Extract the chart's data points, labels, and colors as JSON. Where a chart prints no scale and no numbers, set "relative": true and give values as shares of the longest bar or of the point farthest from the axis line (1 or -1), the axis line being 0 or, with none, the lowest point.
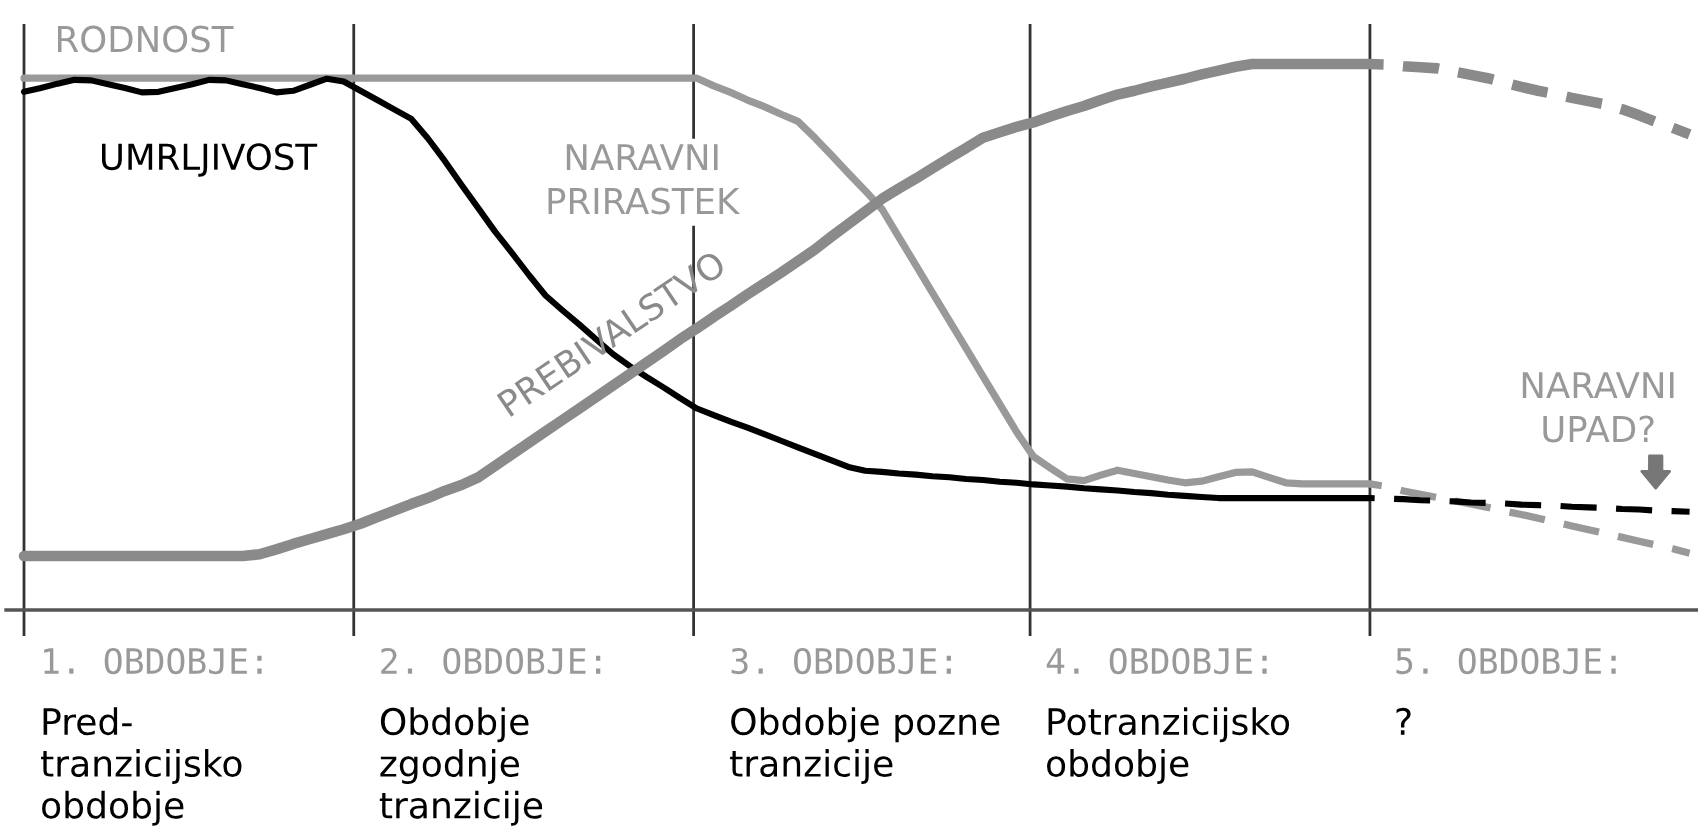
{
  "chart_data": {
    "type": "line",
    "relative": true,
    "grid": "x",
    "categories": [
      null,
      null,
      null,
      null,
      null,
      null,
      null,
      "Pred-\ntranzicijsko\nobdobje",
      null,
      null,
      null,
      null,
      null,
      null,
      null,
      null,
      null,
      null,
      null,
      null,
      null,
      null,
      null,
      null,
      null,
      null,
      "Obdobje\nzgodnje\ntranzicije",
      null,
      null,
      null,
      null,
      null,
      null,
      null,
      null,
      null,
      null,
      null,
      null,
      null,
      null,
      null,
      null,
      null,
      null,
      null,
      null,
      null,
      null,
      null,
      "Obdobje pozne\ntranzicije",
      null,
      null,
      null,
      null,
      null,
      null,
      null,
      null,
      null,
      null,
      null,
      null,
      null,
      null,
      null,
      null,
      null,
      "Potranzicijsko\nobdobje",
      null,
      null,
      null,
      null,
      null,
      null,
      null,
      null,
      null,
      null,
      null,
      null,
      null,
      "?",
      null,
      null,
      null,
      null,
      null,
      null,
      null,
      null,
      null,
      null,
      null,
      null,
      null,
      null,
      null,
      null,
      null
    ],
    "series": [
      {
        "name": "RODNOST",
        "color": "#999999",
        "line_style": "solid",
        "values": [
          0.974,
          0.974,
          0.974,
          0.974,
          0.974,
          0.974,
          0.974,
          0.974,
          0.974,
          0.974,
          0.974,
          0.974,
          0.974,
          0.974,
          0.974,
          0.974,
          0.974,
          0.974,
          0.974,
          0.974,
          0.974,
          0.974,
          0.974,
          0.974,
          0.974,
          0.974,
          0.974,
          0.974,
          0.974,
          0.974,
          0.974,
          0.974,
          0.974,
          0.974,
          0.974,
          0.974,
          0.974,
          0.974,
          0.974,
          0.974,
          0.974,
          0.96,
          0.948,
          0.934,
          0.922,
          0.908,
          0.895,
          0.865,
          0.833,
          0.8,
          0.768,
          0.734,
          0.683,
          0.632,
          0.581,
          0.53,
          0.479,
          0.428,
          0.377,
          0.326,
          0.281,
          0.26,
          0.24,
          0.237,
          0.247,
          0.256,
          0.25,
          0.244,
          0.238,
          0.233,
          0.236,
          0.244,
          0.252,
          0.253,
          0.243,
          0.233,
          0.231,
          0.231,
          0.231,
          0.231,
          0.231,
          null,
          null,
          null,
          null,
          null,
          null,
          null,
          null,
          null,
          null,
          null,
          null,
          null,
          null,
          null,
          null,
          null,
          null,
          null
        ]
      },
      {
        "name": "UMRLJIVOST",
        "color": "#000000",
        "line_style": "solid",
        "values": [
          0.949,
          0.956,
          0.964,
          0.971,
          0.97,
          0.963,
          0.956,
          0.948,
          0.949,
          0.956,
          0.963,
          0.971,
          0.97,
          0.963,
          0.956,
          0.948,
          0.951,
          0.962,
          0.973,
          0.968,
          0.951,
          0.934,
          0.917,
          0.9,
          0.864,
          0.823,
          0.779,
          0.736,
          0.693,
          0.654,
          0.614,
          0.576,
          0.549,
          0.523,
          0.496,
          0.469,
          0.447,
          0.427,
          0.408,
          0.388,
          0.369,
          0.357,
          0.345,
          0.334,
          0.322,
          0.31,
          0.298,
          0.286,
          0.274,
          0.262,
          0.255,
          0.253,
          0.25,
          0.248,
          0.245,
          0.243,
          0.24,
          0.238,
          0.235,
          0.233,
          0.23,
          0.228,
          0.226,
          0.223,
          0.221,
          0.219,
          0.216,
          0.214,
          0.211,
          0.209,
          0.207,
          0.205,
          0.205,
          0.205,
          0.205,
          0.205,
          0.205,
          0.205,
          0.205,
          0.205,
          0.205,
          null,
          null,
          null,
          null,
          null,
          null,
          null,
          null,
          null,
          null,
          null,
          null,
          null,
          null,
          null,
          null,
          null,
          null,
          null
        ]
      },
      {
        "name": "PREBIVALSTVO",
        "color": "#8a8a8a",
        "line_style": "solid",
        "values": [
          0.099,
          0.099,
          0.099,
          0.099,
          0.099,
          0.099,
          0.099,
          0.099,
          0.099,
          0.099,
          0.099,
          0.099,
          0.099,
          0.099,
          0.102,
          0.111,
          0.121,
          0.13,
          0.139,
          0.148,
          0.158,
          0.17,
          0.182,
          0.194,
          0.205,
          0.218,
          0.229,
          0.243,
          0.264,
          0.285,
          0.306,
          0.327,
          0.348,
          0.369,
          0.39,
          0.411,
          0.432,
          0.453,
          0.474,
          0.496,
          0.516,
          0.537,
          0.557,
          0.578,
          0.598,
          0.618,
          0.639,
          0.66,
          0.684,
          0.707,
          0.73,
          0.753,
          0.772,
          0.79,
          0.809,
          0.828,
          0.846,
          0.865,
          0.875,
          0.885,
          0.893,
          0.904,
          0.914,
          0.923,
          0.934,
          0.944,
          0.951,
          0.959,
          0.966,
          0.973,
          0.981,
          0.988,
          0.995,
          1.0,
          1.0,
          1.0,
          1.0,
          1.0,
          1.0,
          1.0,
          1.0,
          null,
          null,
          null,
          null,
          null,
          null,
          null,
          null,
          null,
          null,
          null,
          null,
          null,
          null,
          null,
          null,
          null,
          null,
          null
        ]
      },
      {
        "color": "#999999",
        "line_style": "dashed",
        "values": [
          null,
          null,
          null,
          null,
          null,
          null,
          null,
          null,
          null,
          null,
          null,
          null,
          null,
          null,
          null,
          null,
          null,
          null,
          null,
          null,
          null,
          null,
          null,
          null,
          null,
          null,
          null,
          null,
          null,
          null,
          null,
          null,
          null,
          null,
          null,
          null,
          null,
          null,
          null,
          null,
          null,
          null,
          null,
          null,
          null,
          null,
          null,
          null,
          null,
          null,
          null,
          null,
          null,
          null,
          null,
          null,
          null,
          null,
          null,
          null,
          null,
          null,
          null,
          null,
          null,
          null,
          null,
          null,
          null,
          null,
          null,
          null,
          null,
          null,
          null,
          null,
          null,
          null,
          null,
          null,
          0.231,
          0.226,
          0.218,
          0.212,
          0.206,
          0.2,
          0.194,
          0.188,
          0.181,
          0.175,
          0.168,
          0.161,
          0.154,
          0.147,
          0.14,
          0.133,
          0.126,
          0.119,
          0.112,
          0.104
        ]
      },
      {
        "color": "#000000",
        "line_style": "dashed",
        "values": [
          null,
          null,
          null,
          null,
          null,
          null,
          null,
          null,
          null,
          null,
          null,
          null,
          null,
          null,
          null,
          null,
          null,
          null,
          null,
          null,
          null,
          null,
          null,
          null,
          null,
          null,
          null,
          null,
          null,
          null,
          null,
          null,
          null,
          null,
          null,
          null,
          null,
          null,
          null,
          null,
          null,
          null,
          null,
          null,
          null,
          null,
          null,
          null,
          null,
          null,
          null,
          null,
          null,
          null,
          null,
          null,
          null,
          null,
          null,
          null,
          null,
          null,
          null,
          null,
          null,
          null,
          null,
          null,
          null,
          null,
          null,
          null,
          null,
          null,
          null,
          null,
          null,
          null,
          null,
          null,
          0.205,
          0.204,
          0.203,
          0.201,
          0.2,
          0.199,
          0.197,
          0.196,
          0.195,
          0.193,
          0.192,
          0.191,
          0.189,
          0.188,
          0.187,
          0.185,
          0.184,
          0.182,
          0.181,
          0.18
        ]
      },
      {
        "color": "#8a8a8a",
        "line_style": "dashed",
        "values": [
          null,
          null,
          null,
          null,
          null,
          null,
          null,
          null,
          null,
          null,
          null,
          null,
          null,
          null,
          null,
          null,
          null,
          null,
          null,
          null,
          null,
          null,
          null,
          null,
          null,
          null,
          null,
          null,
          null,
          null,
          null,
          null,
          null,
          null,
          null,
          null,
          null,
          null,
          null,
          null,
          null,
          null,
          null,
          null,
          null,
          null,
          null,
          null,
          null,
          null,
          null,
          null,
          null,
          null,
          null,
          null,
          null,
          null,
          null,
          null,
          null,
          null,
          null,
          null,
          null,
          null,
          null,
          null,
          null,
          null,
          null,
          null,
          null,
          null,
          null,
          null,
          null,
          null,
          null,
          null,
          1.0,
          0.999,
          0.996,
          0.994,
          0.992,
          0.986,
          0.98,
          0.974,
          0.966,
          0.958,
          0.951,
          0.945,
          0.938,
          0.932,
          0.926,
          0.917,
          0.906,
          0.894,
          0.883,
          0.871
        ]
      }
    ],
    "annotations": [
      "NARAVNI\nPRIRASTEK",
      "NARAVNI\nUPAD?",
      "1. OBDOBJE:",
      "2. OBDOBJE:",
      "3. OBDOBJE:",
      "4. OBDOBJE:",
      "5. OBDOBJE:"
    ]
  }
}
